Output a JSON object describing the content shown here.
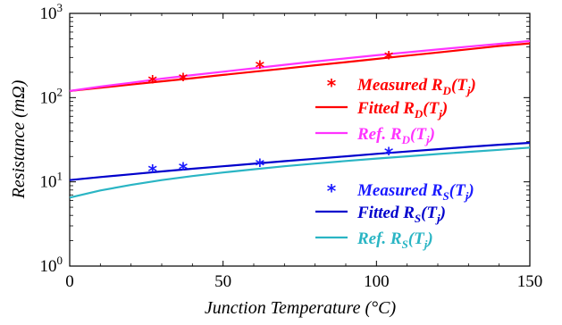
{
  "chart_data": {
    "type": "line",
    "title": "",
    "xlabel": "Junction Temperature (°C)",
    "ylabel": "Resistance (mΩ)",
    "xlim": [
      0,
      150
    ],
    "ylim": [
      1,
      1000
    ],
    "yscale": "log",
    "x_ticks": [
      "0",
      "50",
      "100",
      "150"
    ],
    "y_ticks": [
      {
        "base": "10",
        "exp": "0"
      },
      {
        "base": "10",
        "exp": "1"
      },
      {
        "base": "10",
        "exp": "2"
      },
      {
        "base": "10",
        "exp": "3"
      }
    ],
    "grid": false,
    "legend_position": "right",
    "series": [
      {
        "name": "Measured R_D(T_j)",
        "label_prefix": "Measured",
        "label_sub": "D",
        "style": "marker",
        "color": "#ff0000",
        "x": [
          27,
          37,
          62,
          104
        ],
        "y": [
          160,
          170,
          240,
          310
        ]
      },
      {
        "name": "Fitted R_D(T_j)",
        "label_prefix": "Fitted",
        "label_sub": "D",
        "style": "line",
        "color": "#ff0000",
        "x": [
          0,
          10,
          20,
          30,
          40,
          50,
          60,
          70,
          80,
          90,
          100,
          110,
          120,
          130,
          140,
          150
        ],
        "y": [
          120,
          131,
          143,
          156,
          170,
          186,
          203,
          221,
          242,
          264,
          288,
          315,
          343,
          375,
          410,
          440
        ]
      },
      {
        "name": "Ref. R_D(T_j)",
        "label_prefix": "Ref.",
        "label_sub": "D",
        "style": "line",
        "color": "#ff33ff",
        "x": [
          0,
          10,
          20,
          30,
          40,
          50,
          60,
          70,
          80,
          90,
          100,
          110,
          120,
          130,
          140,
          150
        ],
        "y": [
          120,
          135,
          150,
          168,
          185,
          203,
          223,
          245,
          268,
          292,
          318,
          345,
          373,
          403,
          435,
          470
        ]
      },
      {
        "name": "Measured R_S(T_j)",
        "label_prefix": "Measured",
        "label_sub": "S",
        "style": "marker",
        "color": "#1a1aff",
        "x": [
          27,
          37,
          62,
          104
        ],
        "y": [
          14,
          14.8,
          16.3,
          22.5
        ]
      },
      {
        "name": "Fitted R_S(T_j)",
        "label_prefix": "Fitted",
        "label_sub": "S",
        "style": "line",
        "color": "#0000cc",
        "x": [
          0,
          10,
          20,
          30,
          40,
          50,
          60,
          70,
          80,
          90,
          100,
          110,
          120,
          130,
          140,
          150
        ],
        "y": [
          10.5,
          11.4,
          12.3,
          13.3,
          14.3,
          15.3,
          16.4,
          17.6,
          18.8,
          20.1,
          21.5,
          22.9,
          24.4,
          26.0,
          27.6,
          29.0
        ]
      },
      {
        "name": "Ref. R_S(T_j)",
        "label_prefix": "Ref.",
        "label_sub": "S",
        "style": "line",
        "color": "#2ab5c4",
        "x": [
          0,
          10,
          20,
          30,
          40,
          50,
          60,
          70,
          80,
          90,
          100,
          110,
          120,
          130,
          140,
          150
        ],
        "y": [
          6.5,
          7.9,
          9.2,
          10.5,
          11.7,
          12.9,
          14.1,
          15.3,
          16.5,
          17.7,
          18.9,
          20.1,
          21.4,
          22.7,
          24.0,
          25.5
        ]
      }
    ]
  }
}
